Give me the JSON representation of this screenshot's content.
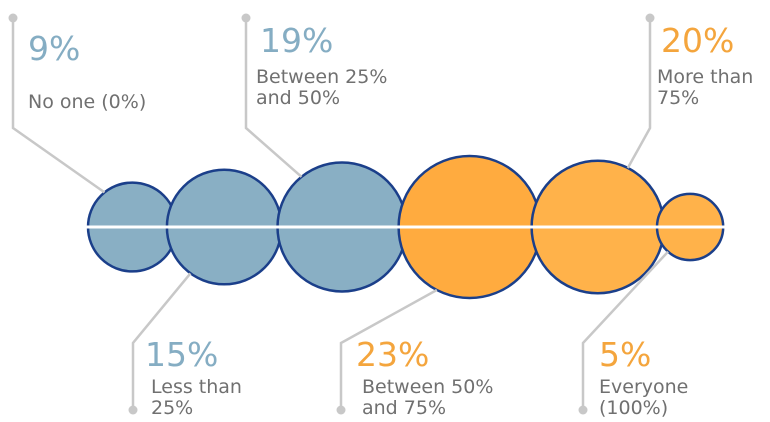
{
  "chart_data": {
    "type": "bubble",
    "title": "",
    "axis_line": true,
    "categories": [
      "No one (0%)",
      "Less than 25%",
      "Between 25% and 50%",
      "Between 50% and 75%",
      "More than 75%",
      "Everyone (100%)"
    ],
    "values": [
      9,
      15,
      19,
      23,
      20,
      5
    ],
    "value_labels": [
      "9%",
      "15%",
      "19%",
      "23%",
      "20%",
      "5%"
    ],
    "label_lines": [
      [
        "No one (0%)"
      ],
      [
        "Less than",
        "25%"
      ],
      [
        "Between 25%",
        "and 50%"
      ],
      [
        "Between 50%",
        "and 75%"
      ],
      [
        "More than",
        "75%"
      ],
      [
        "Everyone",
        "(100%)"
      ]
    ],
    "colors": [
      "#89afc4",
      "#89afc4",
      "#89afc4",
      "#ffab3f",
      "#ffb24a",
      "#ffb24a"
    ],
    "text_colors": [
      "#85adc3",
      "#85adc3",
      "#85adc3",
      "#f4a53d",
      "#f4a53d",
      "#f4a53d"
    ],
    "outline_color": "#1b3f8a",
    "axis_color": "#ffffff",
    "leader_color": "#c8c8c8"
  }
}
